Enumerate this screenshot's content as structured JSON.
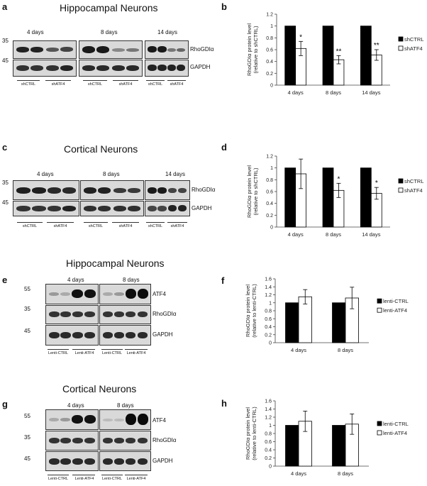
{
  "panels": {
    "a": {
      "letter": "a",
      "title": "Hippocampal Neurons",
      "mw_top": "35",
      "mw_bottom": "45",
      "timepoints": [
        "4 days",
        "8 days",
        "14 days"
      ],
      "rows": [
        "RhoGDIα",
        "GAPDH"
      ],
      "groups": [
        "shCTRL",
        "shATF4",
        "shCTRL",
        "shATF4",
        "shCTRL",
        "shATF4"
      ]
    },
    "c": {
      "letter": "c",
      "title": "Cortical Neurons",
      "mw_top": "35",
      "mw_bottom": "45",
      "timepoints": [
        "4 days",
        "8 days",
        "14 days"
      ],
      "rows": [
        "RhoGDIα",
        "GAPDH"
      ],
      "groups": [
        "shCTRL",
        "shATF4",
        "shCTRL",
        "shATF4",
        "shCTRL",
        "shATF4"
      ]
    },
    "e": {
      "letter": "e",
      "title": "Hippocampal Neurons",
      "mw": [
        "55",
        "35",
        "45"
      ],
      "timepoints": [
        "4 days",
        "8 days"
      ],
      "rows": [
        "ATF4",
        "RhoGDIα",
        "GAPDH"
      ],
      "groups": [
        "Lenti-CTRL",
        "Lenti-ATF4",
        "Lenti-CTRL",
        "Lenti-ATF4"
      ]
    },
    "g": {
      "letter": "g",
      "title": "Cortical Neurons",
      "mw": [
        "55",
        "35",
        "45"
      ],
      "timepoints": [
        "4 days",
        "8 days"
      ],
      "rows": [
        "ATF4",
        "RhoGDIα",
        "GAPDH"
      ],
      "groups": [
        "Lenti-CTRL",
        "Lenti-ATF4",
        "Lenti-CTRL",
        "Lenti-ATF4"
      ]
    }
  },
  "chart_data": [
    {
      "panel": "b",
      "type": "bar",
      "categories": [
        "4 days",
        "8 days",
        "14 days"
      ],
      "series": [
        {
          "name": "shCTRL",
          "values": [
            1,
            1,
            1
          ],
          "color": "#000000"
        },
        {
          "name": "shATF4",
          "values": [
            0.62,
            0.43,
            0.51
          ],
          "errors": [
            0.12,
            0.07,
            0.09
          ],
          "color": "#ffffff"
        }
      ],
      "significance": [
        "*",
        "**",
        "**"
      ],
      "ylabel": "RhoGDIα protein level (relative to shCTRL)",
      "ylim": [
        0,
        1.2
      ],
      "yticks": [
        "0",
        "0.2",
        "0.4",
        "0.6",
        "0.8",
        "1",
        "1.2"
      ],
      "legend": "right"
    },
    {
      "panel": "d",
      "type": "bar",
      "categories": [
        "4 days",
        "8 days",
        "14 days"
      ],
      "series": [
        {
          "name": "shCTRL",
          "values": [
            1,
            1,
            1
          ],
          "color": "#000000"
        },
        {
          "name": "shATF4",
          "values": [
            0.9,
            0.62,
            0.57
          ],
          "errors": [
            0.25,
            0.12,
            0.1
          ],
          "color": "#ffffff"
        }
      ],
      "significance": [
        "",
        "*",
        "*"
      ],
      "ylabel": "RhoGDIα protein level (relative to shCTRL)",
      "ylim": [
        0,
        1.2
      ],
      "yticks": [
        "0",
        "0.2",
        "0.4",
        "0.6",
        "0.8",
        "1",
        "1.2"
      ],
      "legend": "right"
    },
    {
      "panel": "f",
      "type": "bar",
      "categories": [
        "4 days",
        "8 days"
      ],
      "series": [
        {
          "name": "lenti-CTRL",
          "values": [
            1,
            1
          ],
          "color": "#000000"
        },
        {
          "name": "lenti-ATF4",
          "values": [
            1.15,
            1.12
          ],
          "errors": [
            0.18,
            0.27
          ],
          "color": "#ffffff"
        }
      ],
      "significance": [
        "",
        ""
      ],
      "ylabel": "RhoGDIα protein level (relative to lenti-CTRL)",
      "ylim": [
        0,
        1.6
      ],
      "yticks": [
        "0",
        "0.2",
        "0.4",
        "0.6",
        "0.8",
        "1",
        "1.2",
        "1.4",
        "1.6"
      ],
      "legend": "right"
    },
    {
      "panel": "h",
      "type": "bar",
      "categories": [
        "4 days",
        "8 days"
      ],
      "series": [
        {
          "name": "lenti-CTRL",
          "values": [
            1,
            1
          ],
          "color": "#000000"
        },
        {
          "name": "lenti-ATF4",
          "values": [
            1.1,
            1.03
          ],
          "errors": [
            0.25,
            0.25
          ],
          "color": "#ffffff"
        }
      ],
      "significance": [
        "",
        ""
      ],
      "ylabel": "RhoGDIα protein level (relative to lenti-CTRL)",
      "ylim": [
        0,
        1.6
      ],
      "yticks": [
        "0",
        "0.2",
        "0.4",
        "0.6",
        "0.8",
        "1",
        "1.2",
        "1.4",
        "1.6"
      ],
      "legend": "right"
    }
  ]
}
